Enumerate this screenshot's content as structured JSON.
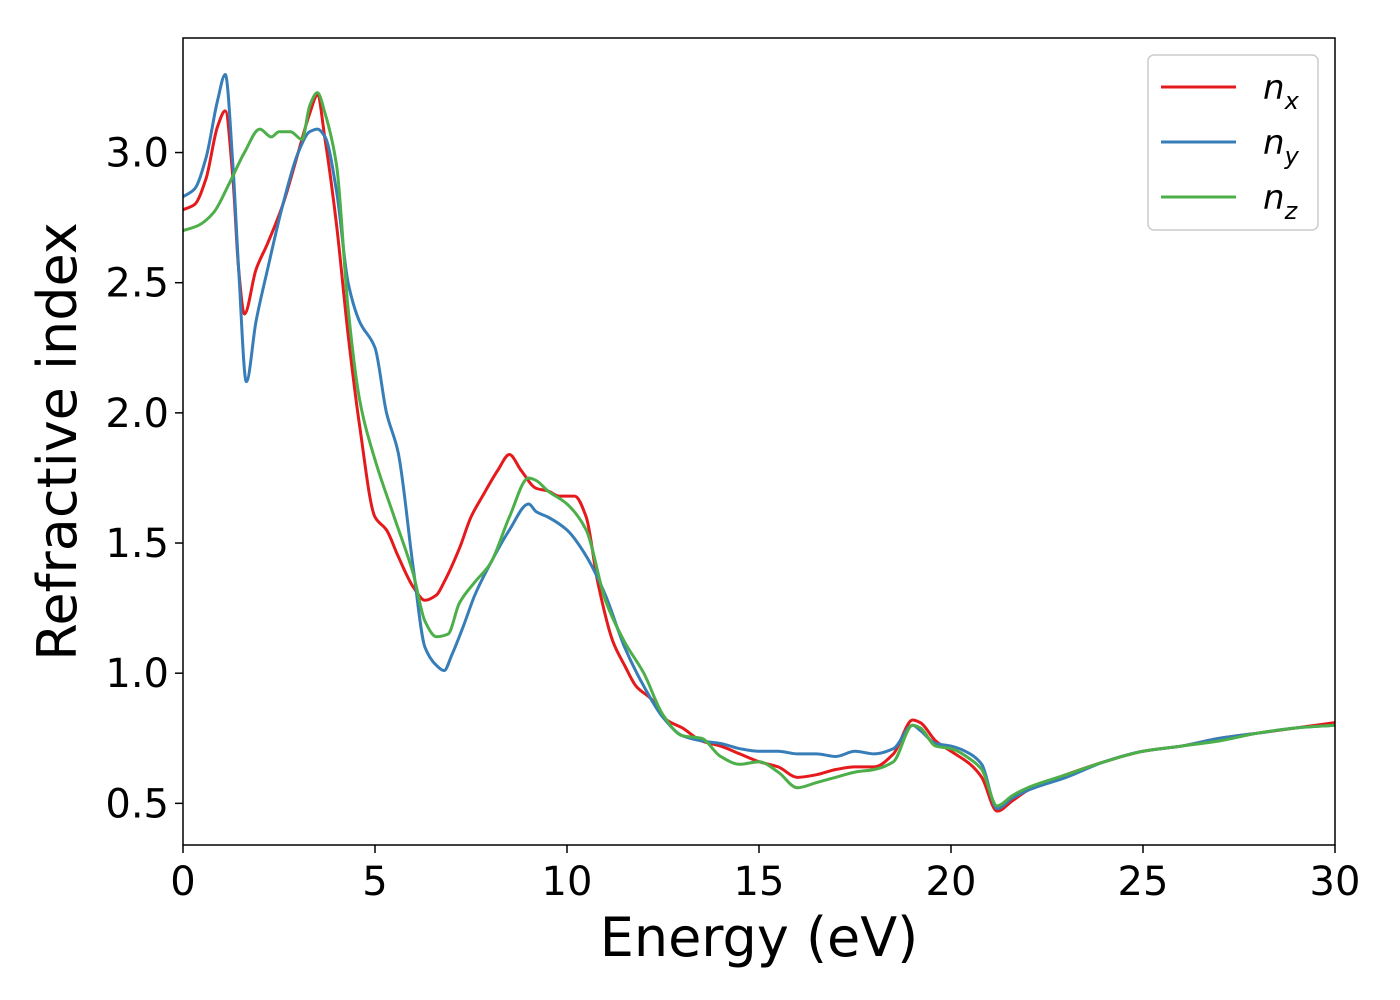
{
  "chart_data": {
    "type": "line",
    "title": "",
    "xlabel": "Energy (eV)",
    "ylabel": "Refractive index",
    "xlim": [
      0,
      30
    ],
    "ylim": [
      0.34,
      3.44
    ],
    "xticks": [
      0,
      5,
      10,
      15,
      20,
      25,
      30
    ],
    "xtick_labels": [
      "0",
      "5",
      "10",
      "15",
      "20",
      "25",
      "30"
    ],
    "yticks": [
      0.5,
      1.0,
      1.5,
      2.0,
      2.5,
      3.0
    ],
    "ytick_labels": [
      "0.5",
      "1.0",
      "1.5",
      "2.0",
      "2.5",
      "3.0"
    ],
    "grid": false,
    "legend_position": "top-right",
    "series": [
      {
        "name": "n_x",
        "label_main": "n",
        "label_sub": "x",
        "color": "#e41a1c",
        "x": [
          0,
          0.3,
          0.6,
          0.9,
          1.1,
          1.3,
          1.45,
          1.6,
          1.9,
          2.2,
          2.6,
          3.0,
          3.3,
          3.5,
          3.7,
          4.0,
          4.3,
          4.6,
          5.0,
          5.3,
          5.6,
          6.0,
          6.3,
          6.6,
          6.8,
          7.2,
          7.5,
          7.8,
          8.2,
          8.5,
          8.8,
          9.2,
          9.5,
          9.8,
          10.2,
          10.5,
          10.8,
          11.2,
          11.5,
          11.8,
          12.2,
          12.6,
          13.0,
          13.5,
          14.0,
          14.5,
          15.0,
          15.5,
          16.0,
          16.5,
          17.0,
          17.5,
          18.0,
          18.5,
          19.0,
          19.2,
          19.6,
          20.0,
          20.5,
          20.8,
          21.2,
          21.6,
          22.0,
          23.0,
          24.0,
          25.0,
          26.0,
          27.0,
          28.0,
          29.0,
          30.0
        ],
        "y": [
          2.78,
          2.8,
          2.9,
          3.1,
          3.16,
          2.9,
          2.55,
          2.38,
          2.55,
          2.65,
          2.8,
          3.0,
          3.15,
          3.22,
          3.05,
          2.72,
          2.3,
          1.95,
          1.6,
          1.55,
          1.45,
          1.33,
          1.28,
          1.3,
          1.35,
          1.48,
          1.6,
          1.68,
          1.78,
          1.84,
          1.78,
          1.71,
          1.7,
          1.68,
          1.68,
          1.6,
          1.35,
          1.12,
          1.03,
          0.95,
          0.9,
          0.82,
          0.79,
          0.74,
          0.72,
          0.69,
          0.66,
          0.64,
          0.6,
          0.61,
          0.63,
          0.64,
          0.64,
          0.69,
          0.82,
          0.81,
          0.74,
          0.7,
          0.65,
          0.6,
          0.47,
          0.51,
          0.55,
          0.61,
          0.66,
          0.7,
          0.72,
          0.75,
          0.77,
          0.79,
          0.81
        ]
      },
      {
        "name": "n_y",
        "label_main": "n",
        "label_sub": "y",
        "color": "#377eb8",
        "x": [
          0,
          0.3,
          0.6,
          0.9,
          1.1,
          1.3,
          1.45,
          1.65,
          1.9,
          2.2,
          2.6,
          3.0,
          3.3,
          3.5,
          3.7,
          4.0,
          4.3,
          4.6,
          5.0,
          5.3,
          5.6,
          6.0,
          6.3,
          6.6,
          6.8,
          7.0,
          7.3,
          7.6,
          8.0,
          8.5,
          9.0,
          9.2,
          9.5,
          10.0,
          10.5,
          11.0,
          11.5,
          12.0,
          12.5,
          13.0,
          13.5,
          14.0,
          14.5,
          15.0,
          15.5,
          16.0,
          16.5,
          17.0,
          17.5,
          18.0,
          18.5,
          19.0,
          19.2,
          19.6,
          20.0,
          20.5,
          20.8,
          21.2,
          21.6,
          22.0,
          23.0,
          24.0,
          25.0,
          26.0,
          27.0,
          28.0,
          29.0,
          30.0
        ],
        "y": [
          2.83,
          2.86,
          2.98,
          3.2,
          3.3,
          2.95,
          2.55,
          2.12,
          2.35,
          2.55,
          2.8,
          3.0,
          3.08,
          3.09,
          3.06,
          2.85,
          2.5,
          2.35,
          2.25,
          2.0,
          1.85,
          1.4,
          1.1,
          1.03,
          1.01,
          1.07,
          1.18,
          1.3,
          1.42,
          1.55,
          1.65,
          1.62,
          1.6,
          1.55,
          1.45,
          1.3,
          1.1,
          0.95,
          0.83,
          0.76,
          0.74,
          0.73,
          0.71,
          0.7,
          0.7,
          0.69,
          0.69,
          0.68,
          0.7,
          0.69,
          0.71,
          0.8,
          0.78,
          0.73,
          0.72,
          0.69,
          0.65,
          0.48,
          0.52,
          0.55,
          0.6,
          0.66,
          0.7,
          0.72,
          0.75,
          0.77,
          0.79,
          0.8
        ]
      },
      {
        "name": "n_z",
        "label_main": "n",
        "label_sub": "z",
        "color": "#4daf4a",
        "x": [
          0,
          0.4,
          0.8,
          1.2,
          1.6,
          2.0,
          2.3,
          2.5,
          2.8,
          3.1,
          3.3,
          3.5,
          3.7,
          4.0,
          4.3,
          4.6,
          5.0,
          5.5,
          6.0,
          6.3,
          6.6,
          6.9,
          7.2,
          7.6,
          8.0,
          8.5,
          9.0,
          9.2,
          9.5,
          10.0,
          10.5,
          11.0,
          11.5,
          12.0,
          12.5,
          13.0,
          13.5,
          14.0,
          14.5,
          15.0,
          15.5,
          16.0,
          16.5,
          17.0,
          17.5,
          18.0,
          18.5,
          19.0,
          19.2,
          19.6,
          20.0,
          20.5,
          20.8,
          21.2,
          21.6,
          22.0,
          23.0,
          24.0,
          25.0,
          26.0,
          27.0,
          28.0,
          29.0,
          30.0
        ],
        "y": [
          2.7,
          2.72,
          2.77,
          2.88,
          3.0,
          3.09,
          3.06,
          3.08,
          3.08,
          3.05,
          3.18,
          3.23,
          3.15,
          2.95,
          2.4,
          2.05,
          1.82,
          1.6,
          1.38,
          1.2,
          1.14,
          1.15,
          1.27,
          1.35,
          1.42,
          1.6,
          1.75,
          1.74,
          1.7,
          1.65,
          1.55,
          1.28,
          1.12,
          1.0,
          0.84,
          0.76,
          0.75,
          0.68,
          0.65,
          0.66,
          0.62,
          0.56,
          0.58,
          0.6,
          0.62,
          0.63,
          0.66,
          0.8,
          0.79,
          0.72,
          0.71,
          0.67,
          0.63,
          0.49,
          0.53,
          0.56,
          0.61,
          0.66,
          0.7,
          0.72,
          0.74,
          0.77,
          0.79,
          0.8
        ]
      }
    ]
  }
}
